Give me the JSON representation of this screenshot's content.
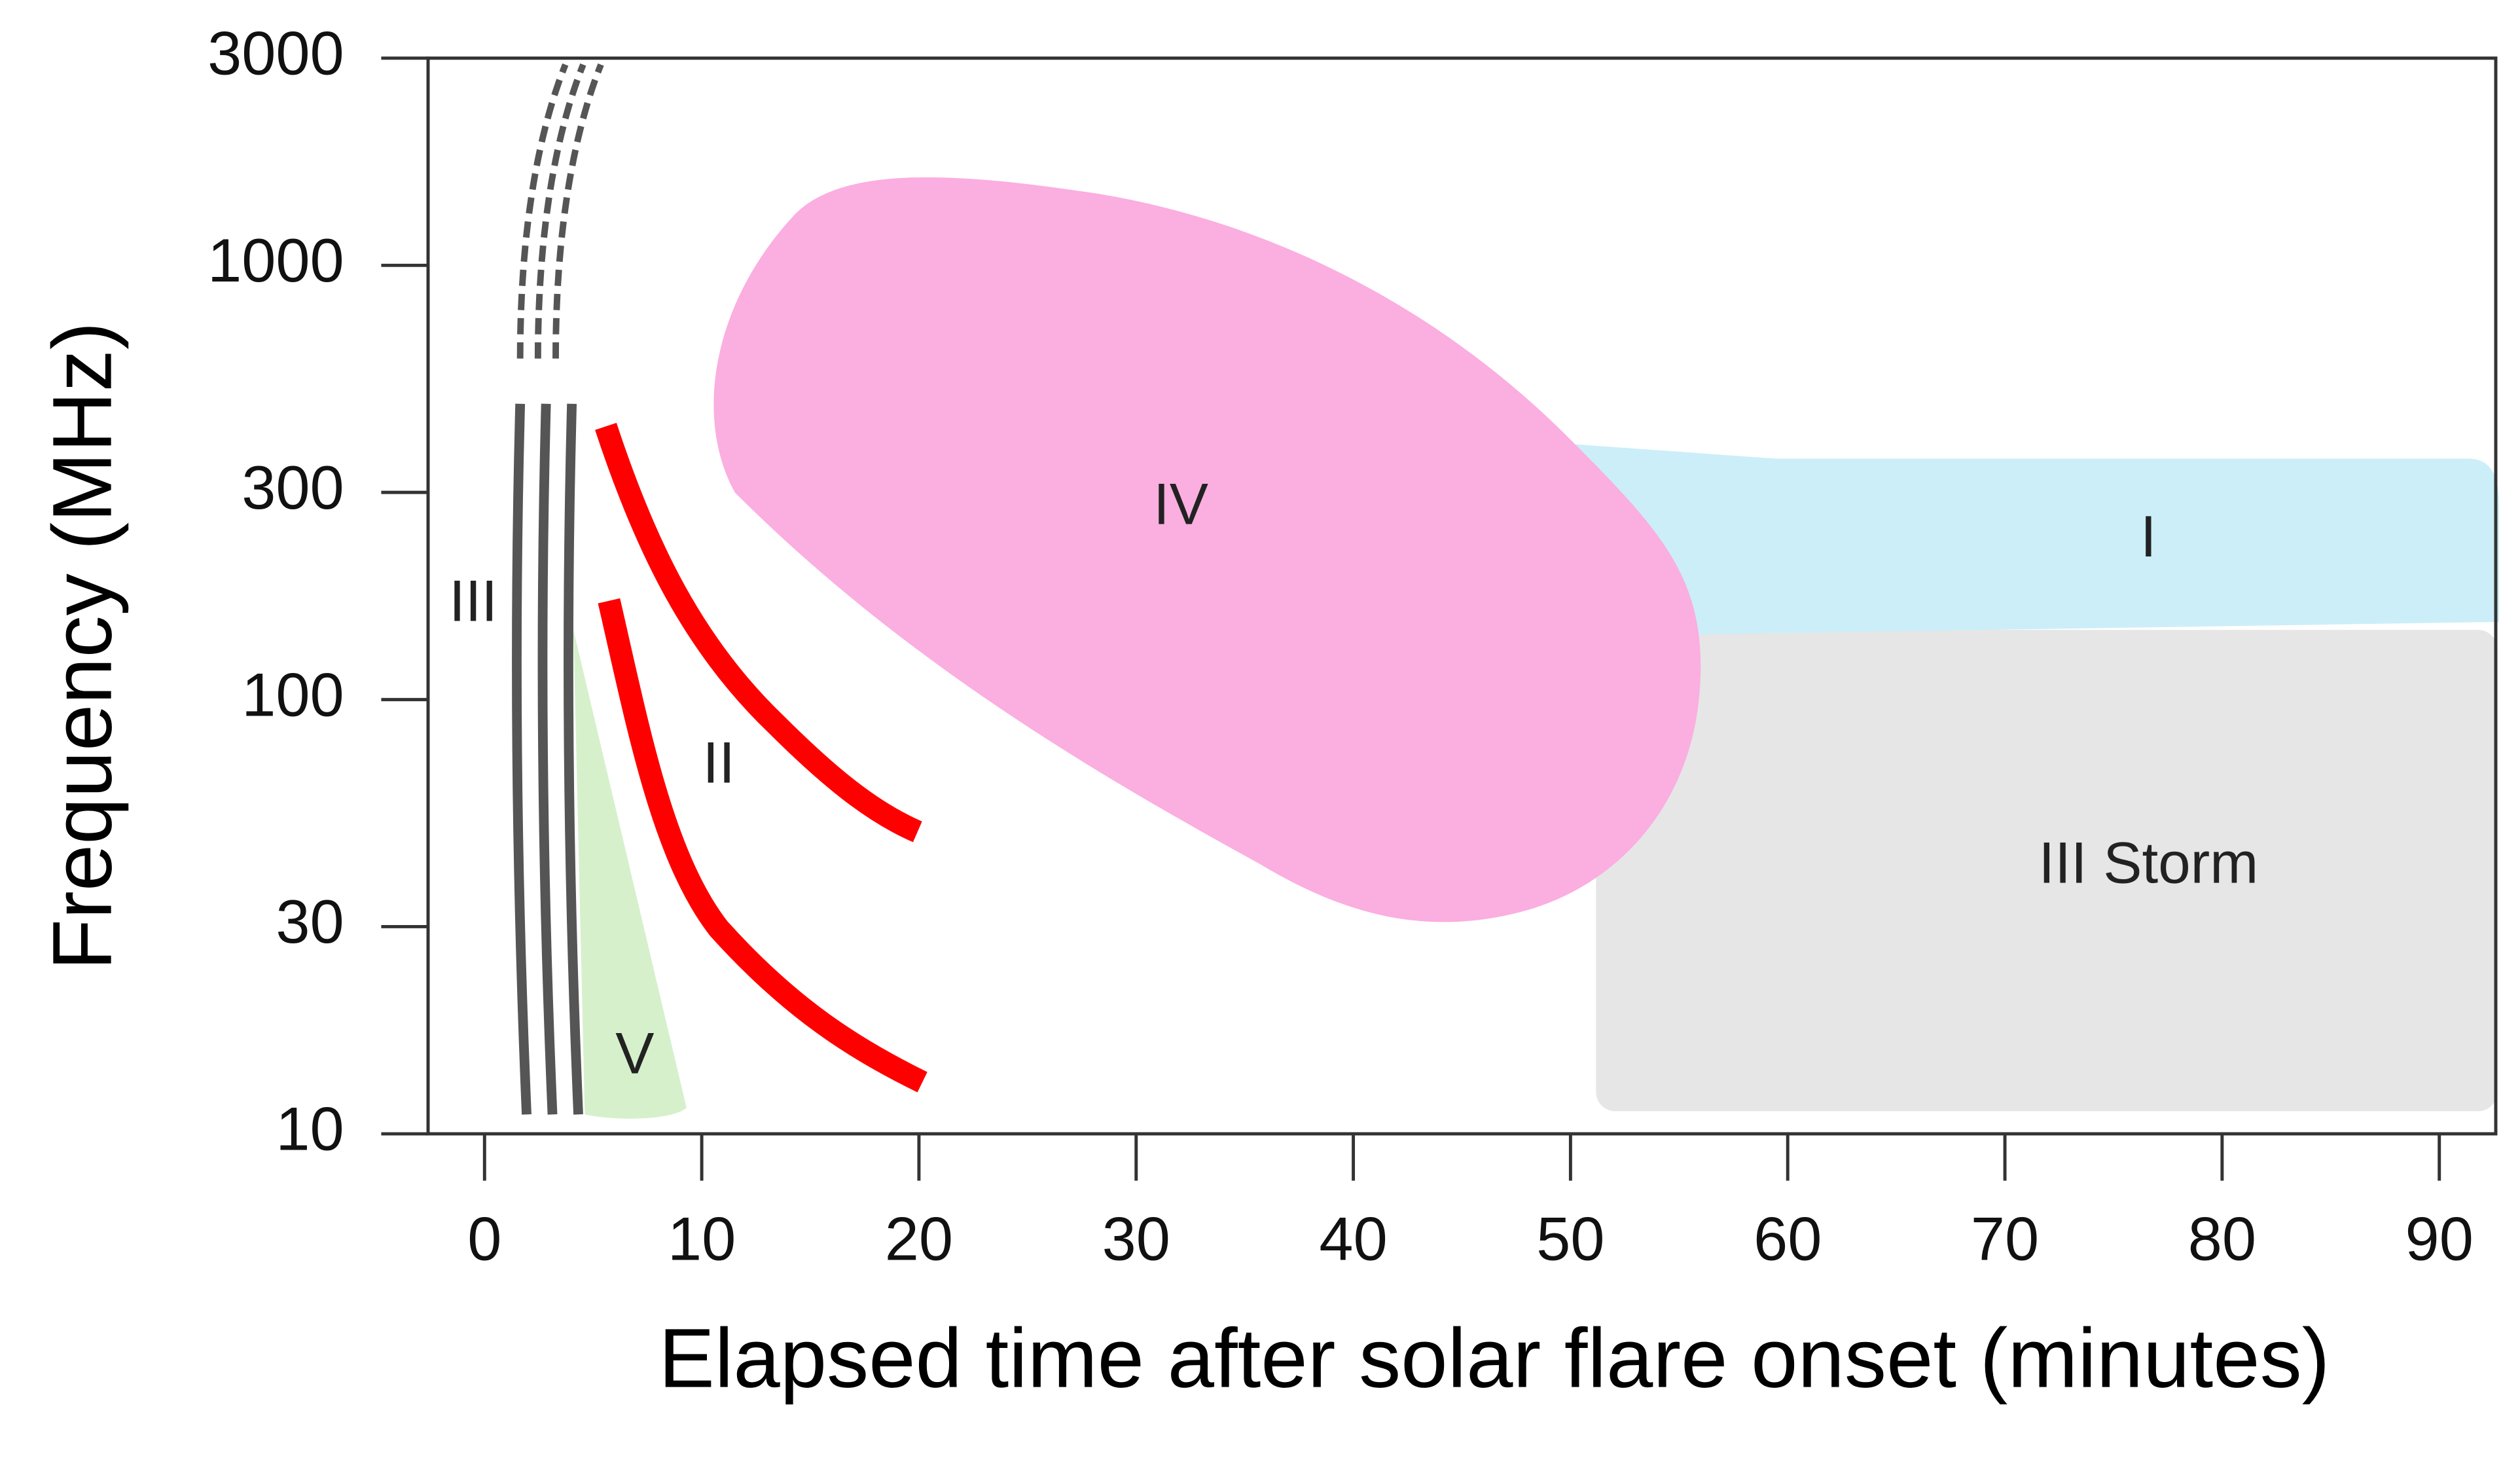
{
  "chart_data": {
    "type": "region",
    "x_label": "Elapsed time after solar flare onset (minutes)",
    "y_label": "Frequency (MHz)",
    "xlim": [
      -2.6,
      92.6
    ],
    "xticks": [
      0,
      10,
      20,
      30,
      40,
      50,
      60,
      70,
      80,
      90
    ],
    "ylim": [
      10,
      3000
    ],
    "yticks": [
      10,
      30,
      100,
      300,
      1000,
      3000
    ],
    "y_scale": "log",
    "annotations": [
      "III",
      "II",
      "IV",
      "I",
      "V",
      "III Storm"
    ]
  }
}
